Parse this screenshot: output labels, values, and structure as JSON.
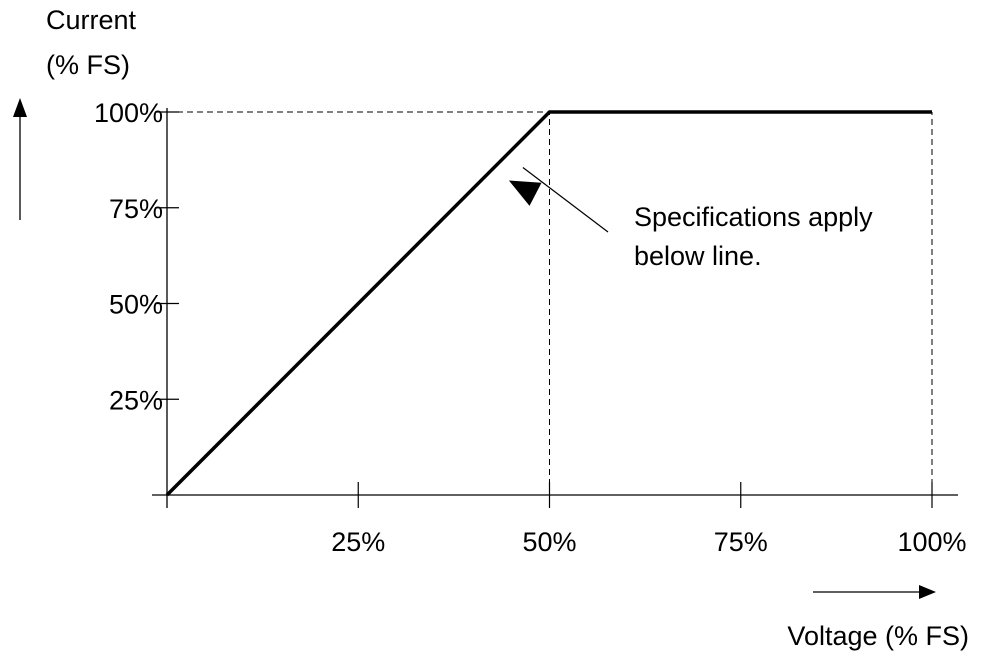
{
  "chart_data": {
    "type": "line",
    "xlabel": "Voltage (% FS)",
    "ylabel_lines": [
      "Current",
      "(% FS)"
    ],
    "xlim": [
      0,
      100
    ],
    "ylim": [
      0,
      100
    ],
    "x_ticks": [
      {
        "value": 25,
        "label": "25%"
      },
      {
        "value": 50,
        "label": "50%"
      },
      {
        "value": 75,
        "label": "75%"
      },
      {
        "value": 100,
        "label": "100%"
      }
    ],
    "y_ticks": [
      {
        "value": 25,
        "label": "25%"
      },
      {
        "value": 50,
        "label": "50%"
      },
      {
        "value": 75,
        "label": "75%"
      },
      {
        "value": 100,
        "label": "100%"
      }
    ],
    "series": [
      {
        "x": [
          0,
          50,
          100
        ],
        "y": [
          0,
          100,
          100
        ]
      }
    ],
    "reference_lines": [
      {
        "from": [
          0,
          100
        ],
        "to": [
          50,
          100
        ]
      },
      {
        "from": [
          50,
          0
        ],
        "to": [
          50,
          100
        ]
      },
      {
        "from": [
          100,
          0
        ],
        "to": [
          100,
          100
        ]
      }
    ],
    "annotation": {
      "lines": [
        "Specifications apply",
        "below line."
      ],
      "points_to": [
        46,
        91
      ]
    },
    "grid": false,
    "legend": "none",
    "colors": {
      "line": "#000000",
      "background": "#ffffff"
    }
  }
}
